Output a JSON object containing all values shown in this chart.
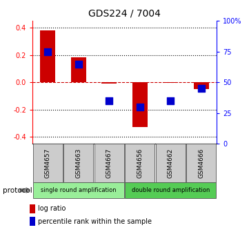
{
  "title": "GDS224 / 7004",
  "samples": [
    "GSM4657",
    "GSM4663",
    "GSM4667",
    "GSM4656",
    "GSM4662",
    "GSM4666"
  ],
  "log_ratio": [
    0.38,
    0.185,
    -0.008,
    -0.325,
    -0.005,
    -0.05
  ],
  "percentile_rank_pct": [
    75,
    65,
    35,
    30,
    35,
    45
  ],
  "ylim": [
    -0.45,
    0.45
  ],
  "pct_ylim": [
    0,
    100
  ],
  "yticks_left": [
    -0.4,
    -0.2,
    0.0,
    0.2,
    0.4
  ],
  "yticks_right": [
    0,
    25,
    50,
    75,
    100
  ],
  "bar_color": "#cc0000",
  "dot_color": "#0000cc",
  "protocol_groups": [
    {
      "label": "single round amplification",
      "n": 3,
      "color": "#99ee99"
    },
    {
      "label": "double round amplification",
      "n": 3,
      "color": "#55cc55"
    }
  ],
  "protocol_label": "protocol",
  "legend_items": [
    {
      "label": "log ratio",
      "color": "#cc0000"
    },
    {
      "label": "percentile rank within the sample",
      "color": "#0000cc"
    }
  ],
  "background_color": "#ffffff"
}
